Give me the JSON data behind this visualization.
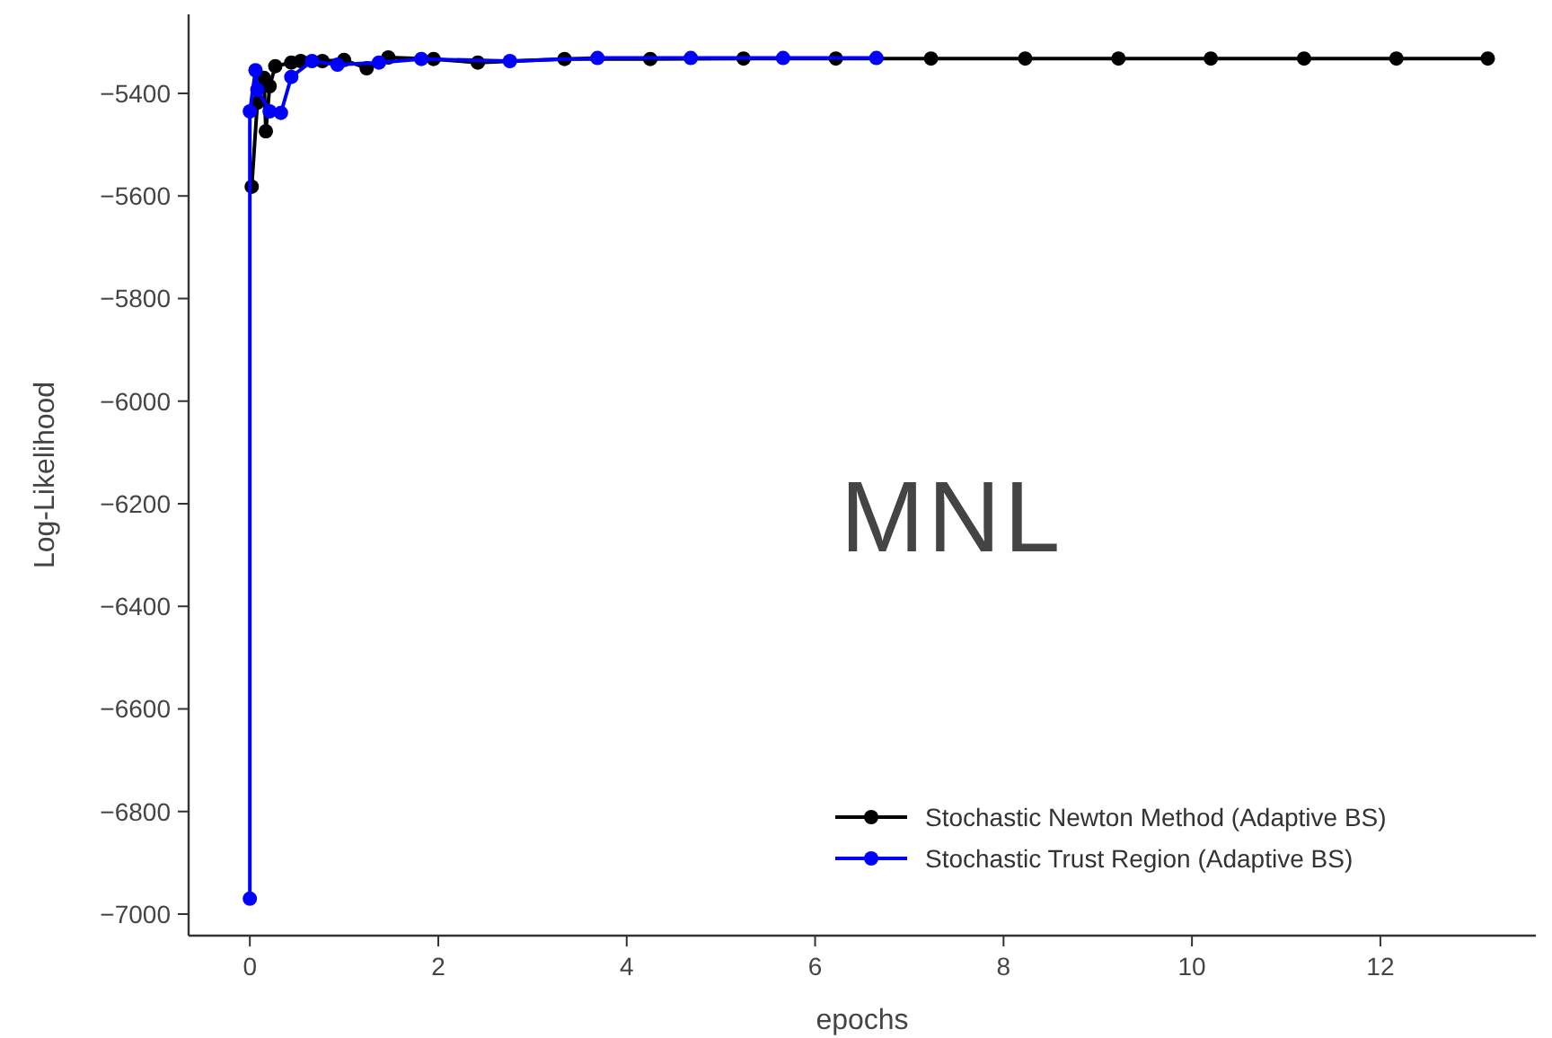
{
  "chart_data": {
    "type": "line",
    "xlabel": "epochs",
    "ylabel": "Log-Likelihood",
    "annotations": [
      "MNL"
    ],
    "xlim": [
      -0.65,
      13.65
    ],
    "ylim": [
      -7042,
      -5246
    ],
    "xticks": [
      0,
      2,
      4,
      6,
      8,
      10,
      12
    ],
    "yticks": [
      -7000,
      -6800,
      -6600,
      -6400,
      -6200,
      -6000,
      -5800,
      -5600,
      -5400
    ],
    "marker": "circle",
    "legend": "bottom right",
    "grid": false,
    "series": [
      {
        "name": "Stochastic Newton Method (Adaptive BS)",
        "color": "#000000",
        "x": [
          0.02,
          0.08,
          0.15,
          0.17,
          0.21,
          0.27,
          0.44,
          0.54,
          0.77,
          1.0,
          1.24,
          1.47,
          1.95,
          2.42,
          3.34,
          4.25,
          5.24,
          6.22,
          7.23,
          8.23,
          9.22,
          10.2,
          11.19,
          12.17,
          13.14
        ],
        "values": [
          -5582,
          -5418,
          -5370,
          -5474,
          -5386,
          -5347,
          -5340,
          -5337,
          -5337,
          -5335,
          -5351,
          -5330,
          -5333,
          -5340,
          -5333,
          -5333,
          -5332,
          -5332,
          -5332,
          -5332,
          -5332,
          -5332,
          -5332,
          -5332,
          -5332
        ]
      },
      {
        "name": "Stochastic Trust Region (Adaptive BS)",
        "color": "#0000ff",
        "x": [
          0.0,
          0.0,
          0.06,
          0.08,
          0.21,
          0.33,
          0.44,
          0.66,
          0.93,
          1.37,
          1.82,
          2.76,
          3.69,
          4.68,
          5.66,
          6.65
        ],
        "values": [
          -6970,
          -5435,
          -5355,
          -5393,
          -5435,
          -5438,
          -5368,
          -5337,
          -5344,
          -5340,
          -5333,
          -5337,
          -5331,
          -5331,
          -5331,
          -5331
        ]
      }
    ]
  }
}
